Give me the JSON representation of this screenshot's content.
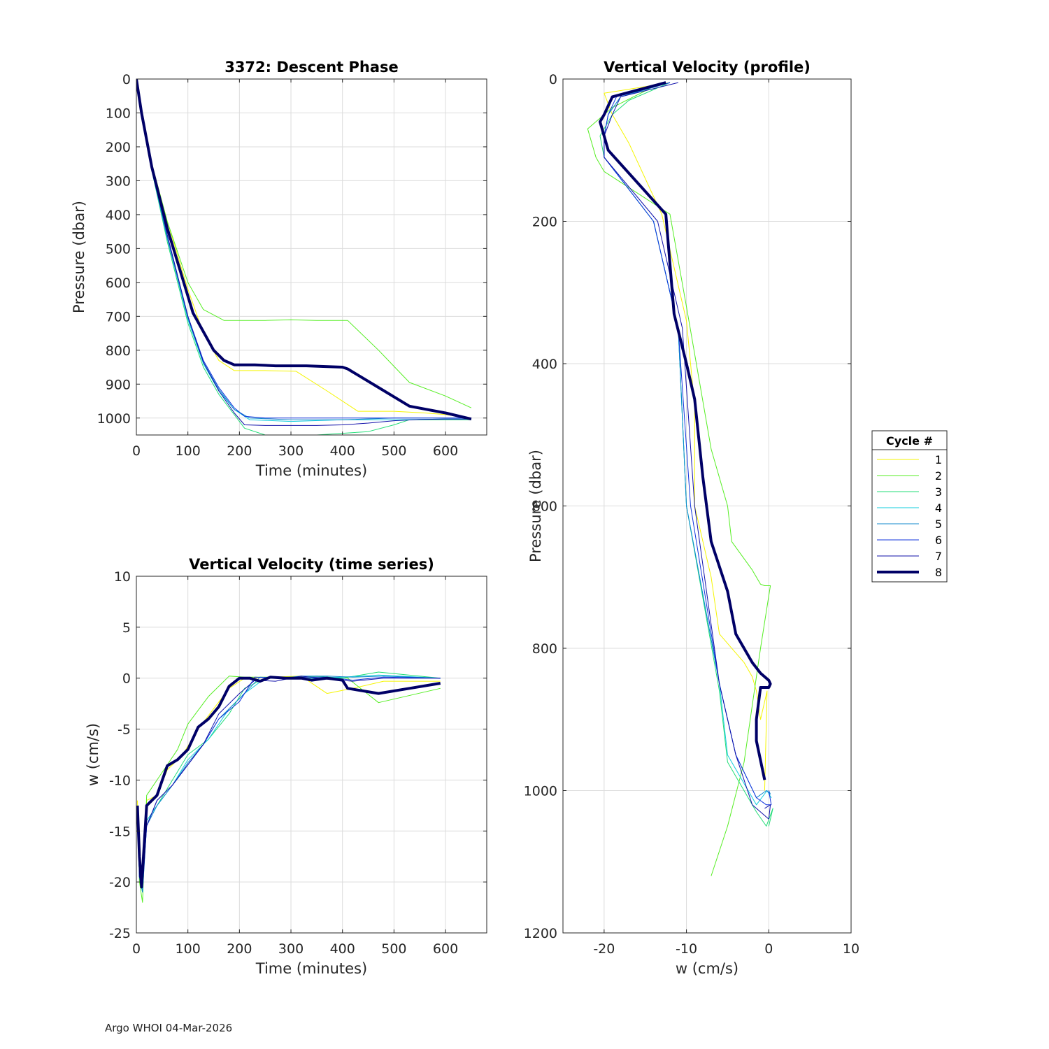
{
  "footer": "Argo WHOI 04-Mar-2026",
  "legend": {
    "title": "Cycle #",
    "entries": [
      {
        "label": "1",
        "color": "#f5f500"
      },
      {
        "label": "2",
        "color": "#55ee22"
      },
      {
        "label": "3",
        "color": "#22dd77"
      },
      {
        "label": "4",
        "color": "#11ccdd"
      },
      {
        "label": "5",
        "color": "#1188cc"
      },
      {
        "label": "6",
        "color": "#1133dd"
      },
      {
        "label": "7",
        "color": "#1111aa"
      },
      {
        "label": "8",
        "color": "#000066"
      }
    ]
  },
  "chart_data": [
    {
      "id": "descent",
      "type": "line",
      "title": "3372: Descent Phase",
      "xlabel": "Time (minutes)",
      "ylabel": "Pressure (dbar)",
      "xlim": [
        0,
        680
      ],
      "ylim": [
        0,
        1050
      ],
      "y_reversed": true,
      "grid": true,
      "xticks": [
        0,
        100,
        200,
        300,
        400,
        500,
        600
      ],
      "yticks": [
        0,
        100,
        200,
        300,
        400,
        500,
        600,
        700,
        800,
        900,
        1000
      ],
      "series": [
        {
          "name": "1",
          "x": [
            0,
            10,
            30,
            60,
            100,
            130,
            160,
            190,
            250,
            310,
            370,
            430,
            500,
            560,
            600,
            650
          ],
          "y": [
            0,
            100,
            250,
            420,
            620,
            750,
            830,
            860,
            860,
            862,
            920,
            980,
            980,
            985,
            990,
            1000
          ]
        },
        {
          "name": "2",
          "x": [
            0,
            10,
            30,
            60,
            100,
            130,
            170,
            200,
            250,
            300,
            350,
            410,
            470,
            530,
            600,
            650
          ],
          "y": [
            0,
            100,
            250,
            420,
            600,
            680,
            712,
            712,
            712,
            710,
            712,
            712,
            800,
            895,
            935,
            970
          ]
        },
        {
          "name": "3",
          "x": [
            0,
            10,
            30,
            60,
            100,
            130,
            160,
            190,
            210,
            250,
            300,
            350,
            400,
            450,
            500,
            530,
            560,
            600,
            650
          ],
          "y": [
            0,
            100,
            270,
            480,
            720,
            850,
            930,
            990,
            1030,
            1050,
            1050,
            1050,
            1045,
            1040,
            1020,
            1005,
            1005,
            1005,
            1005
          ]
        },
        {
          "name": "4",
          "x": [
            0,
            10,
            30,
            60,
            100,
            130,
            160,
            190,
            220,
            300,
            400,
            500,
            600,
            650
          ],
          "y": [
            0,
            100,
            270,
            470,
            710,
            840,
            920,
            975,
            1005,
            1010,
            1005,
            1005,
            1003,
            1003
          ]
        },
        {
          "name": "5",
          "x": [
            0,
            10,
            30,
            60,
            100,
            130,
            160,
            190,
            220,
            300,
            400,
            500,
            600,
            650
          ],
          "y": [
            0,
            100,
            265,
            470,
            705,
            835,
            915,
            975,
            1000,
            1005,
            1005,
            1000,
            1000,
            1000
          ]
        },
        {
          "name": "6",
          "x": [
            0,
            10,
            30,
            60,
            100,
            130,
            160,
            190,
            210,
            250,
            300,
            400,
            500,
            600,
            650
          ],
          "y": [
            0,
            100,
            260,
            460,
            700,
            830,
            910,
            970,
            995,
            1000,
            1000,
            1000,
            1000,
            1000,
            1000
          ]
        },
        {
          "name": "7",
          "x": [
            0,
            10,
            30,
            60,
            100,
            130,
            160,
            190,
            210,
            250,
            300,
            350,
            400,
            450,
            500,
            550,
            600,
            650
          ],
          "y": [
            0,
            100,
            260,
            460,
            700,
            835,
            920,
            985,
            1020,
            1022,
            1022,
            1022,
            1020,
            1015,
            1008,
            1004,
            1003,
            1003
          ]
        },
        {
          "name": "8",
          "x": [
            0,
            10,
            30,
            60,
            110,
            150,
            170,
            190,
            230,
            270,
            330,
            400,
            410,
            470,
            530,
            600,
            650
          ],
          "y": [
            0,
            100,
            260,
            440,
            690,
            800,
            830,
            843,
            843,
            846,
            846,
            850,
            855,
            910,
            965,
            985,
            1003
          ]
        }
      ]
    },
    {
      "id": "wtime",
      "type": "line",
      "title": "Vertical Velocity (time series)",
      "xlabel": "Time (minutes)",
      "ylabel": "w (cm/s)",
      "xlim": [
        0,
        680
      ],
      "ylim": [
        -25,
        10
      ],
      "y_reversed": false,
      "grid": true,
      "xticks": [
        0,
        100,
        200,
        300,
        400,
        500,
        600
      ],
      "yticks": [
        -25,
        -20,
        -15,
        -10,
        -5,
        0,
        5,
        10
      ],
      "series": [
        {
          "name": "1",
          "x": [
            2,
            6,
            12,
            20,
            40,
            60,
            90,
            120,
            150,
            180,
            210,
            260,
            320,
            370,
            420,
            480,
            590
          ],
          "y": [
            -12,
            -19,
            -21,
            -12,
            -11.5,
            -9,
            -7.5,
            -5,
            -3,
            -1,
            0,
            0.1,
            0.2,
            -1.5,
            -1,
            -0.3,
            -0.3
          ]
        },
        {
          "name": "2",
          "x": [
            2,
            6,
            12,
            20,
            40,
            60,
            80,
            100,
            140,
            180,
            210,
            260,
            320,
            370,
            410,
            470,
            590
          ],
          "y": [
            -12.5,
            -20,
            -22,
            -11.5,
            -10,
            -8.5,
            -7,
            -4.5,
            -1.8,
            0.2,
            0.1,
            0.1,
            0.1,
            0.1,
            0,
            -2.4,
            -1
          ]
        },
        {
          "name": "3",
          "x": [
            2,
            6,
            12,
            20,
            40,
            70,
            100,
            140,
            180,
            210,
            250,
            300,
            350,
            400,
            470,
            590
          ],
          "y": [
            -13,
            -19.5,
            -21,
            -14,
            -12.5,
            -10,
            -7.5,
            -6,
            -3.5,
            -1,
            0,
            0,
            0.2,
            0,
            0.6,
            0
          ]
        },
        {
          "name": "4",
          "x": [
            2,
            6,
            12,
            20,
            40,
            70,
            100,
            140,
            180,
            210,
            250,
            300,
            350,
            400,
            470,
            590
          ],
          "y": [
            -13,
            -19.5,
            -21,
            -14,
            -12.5,
            -10.5,
            -8,
            -6,
            -3,
            -1.5,
            0,
            0,
            0,
            0.1,
            0.3,
            0
          ]
        },
        {
          "name": "5",
          "x": [
            2,
            6,
            12,
            20,
            40,
            70,
            100,
            130,
            160,
            200,
            240,
            280,
            320,
            370,
            420,
            480,
            590
          ],
          "y": [
            -13,
            -19.5,
            -21,
            -14.5,
            -12.5,
            -10.5,
            -8.3,
            -6.5,
            -4,
            -2,
            0.1,
            0,
            0.2,
            0.2,
            0.1,
            0.2,
            0
          ]
        },
        {
          "name": "6",
          "x": [
            2,
            6,
            12,
            20,
            40,
            70,
            100,
            130,
            160,
            200,
            230,
            270,
            320,
            370,
            420,
            480,
            590
          ],
          "y": [
            -13,
            -19.5,
            -20.5,
            -14.5,
            -12,
            -10.5,
            -8.5,
            -6.5,
            -4,
            -2.3,
            0.1,
            0,
            0.1,
            0.1,
            -0.2,
            0.1,
            0
          ]
        },
        {
          "name": "7",
          "x": [
            2,
            6,
            12,
            20,
            40,
            70,
            100,
            130,
            160,
            200,
            230,
            270,
            320,
            370,
            420,
            480,
            590
          ],
          "y": [
            -13,
            -19.5,
            -20.5,
            -14.5,
            -12,
            -10.5,
            -8.5,
            -6.5,
            -3.5,
            -1.5,
            -0.2,
            -0.3,
            0.2,
            -0.1,
            -0.3,
            0,
            0
          ]
        },
        {
          "name": "8",
          "x": [
            2,
            6,
            10,
            20,
            40,
            60,
            80,
            100,
            120,
            140,
            160,
            180,
            200,
            220,
            240,
            260,
            290,
            320,
            340,
            370,
            400,
            410,
            470,
            530,
            590
          ],
          "y": [
            -12.5,
            -17.5,
            -20.5,
            -12.5,
            -11.5,
            -8.6,
            -8,
            -7,
            -4.8,
            -4,
            -2.8,
            -0.8,
            0,
            0,
            -0.3,
            0.1,
            0,
            0,
            -0.2,
            0,
            -0.2,
            -1,
            -1.5,
            -1,
            -0.5
          ]
        }
      ]
    },
    {
      "id": "wprofile",
      "type": "line",
      "title": "Vertical Velocity (profile)",
      "xlabel": "w (cm/s)",
      "ylabel": "Pressure (dbar)",
      "xlim": [
        -25,
        10
      ],
      "ylim": [
        0,
        1200
      ],
      "y_reversed": true,
      "grid": true,
      "xticks": [
        -20,
        -10,
        0,
        10
      ],
      "yticks": [
        0,
        200,
        400,
        600,
        800,
        1000,
        1200
      ],
      "series": [
        {
          "name": "1",
          "x": [
            -12,
            -20,
            -19,
            -17,
            -13,
            -10,
            -9,
            -9,
            -7,
            -6,
            -3,
            -2,
            -1.5,
            -1,
            -0.2,
            -0.5
          ],
          "y": [
            5,
            20,
            50,
            90,
            190,
            340,
            460,
            600,
            700,
            780,
            820,
            840,
            860,
            900,
            860,
            1000
          ]
        },
        {
          "name": "2",
          "x": [
            -13,
            -19,
            -22,
            -21,
            -20,
            -12,
            -10,
            -7,
            -5,
            -4.5,
            -2,
            -1,
            -0.5,
            0.2,
            -1,
            -2,
            -3,
            -5,
            -7
          ],
          "y": [
            5,
            40,
            70,
            110,
            130,
            190,
            320,
            520,
            600,
            650,
            690,
            710,
            712,
            712,
            800,
            880,
            960,
            1050,
            1120
          ]
        },
        {
          "name": "3",
          "x": [
            -12,
            -17,
            -19,
            -20.5,
            -20,
            -14,
            -11,
            -10,
            -6,
            -5,
            -1.5,
            -0.3,
            0.5,
            0
          ],
          "y": [
            5,
            30,
            50,
            80,
            110,
            200,
            350,
            600,
            860,
            960,
            1030,
            1050,
            1025,
            1050
          ]
        },
        {
          "name": "4",
          "x": [
            -12,
            -18,
            -19.5,
            -20,
            -20,
            -14,
            -11,
            -10,
            -6,
            -5,
            -1.5,
            -0.2,
            0.3,
            0
          ],
          "y": [
            5,
            25,
            50,
            80,
            110,
            200,
            350,
            600,
            850,
            950,
            1020,
            1000,
            1010,
            1005
          ]
        },
        {
          "name": "5",
          "x": [
            -12,
            -18,
            -19.5,
            -20,
            -20,
            -14,
            -11,
            -10,
            -6,
            -4,
            -1.5,
            -0.3,
            0.2,
            0
          ],
          "y": [
            5,
            25,
            50,
            80,
            110,
            200,
            350,
            600,
            850,
            950,
            1010,
            1000,
            1005,
            1000
          ]
        },
        {
          "name": "6",
          "x": [
            -12,
            -18.5,
            -19.5,
            -20,
            -20,
            -14,
            -11,
            -9.5,
            -6,
            -4,
            -1.5,
            -0.3,
            0.3,
            0
          ],
          "y": [
            5,
            25,
            50,
            80,
            110,
            200,
            350,
            600,
            850,
            950,
            1010,
            1020,
            1020,
            1000
          ]
        },
        {
          "name": "7",
          "x": [
            -11,
            -18,
            -19,
            -20,
            -20,
            -13.5,
            -10.5,
            -9,
            -6,
            -4,
            -2,
            0,
            0.2,
            -0.5
          ],
          "y": [
            5,
            25,
            50,
            80,
            110,
            200,
            350,
            600,
            850,
            950,
            1020,
            1040,
            1020,
            1025
          ]
        },
        {
          "name": "8",
          "x": [
            -12.5,
            -19,
            -20,
            -20.5,
            -19.5,
            -12.5,
            -11.5,
            -10,
            -9,
            -8,
            -7,
            -5,
            -4,
            -2,
            -1,
            0,
            0.2,
            0,
            -1,
            -1.5,
            -1.5,
            -0.5
          ],
          "y": [
            5,
            25,
            50,
            60,
            100,
            190,
            330,
            400,
            450,
            560,
            650,
            720,
            780,
            820,
            835,
            845,
            850,
            855,
            855,
            900,
            930,
            985
          ]
        }
      ]
    }
  ]
}
